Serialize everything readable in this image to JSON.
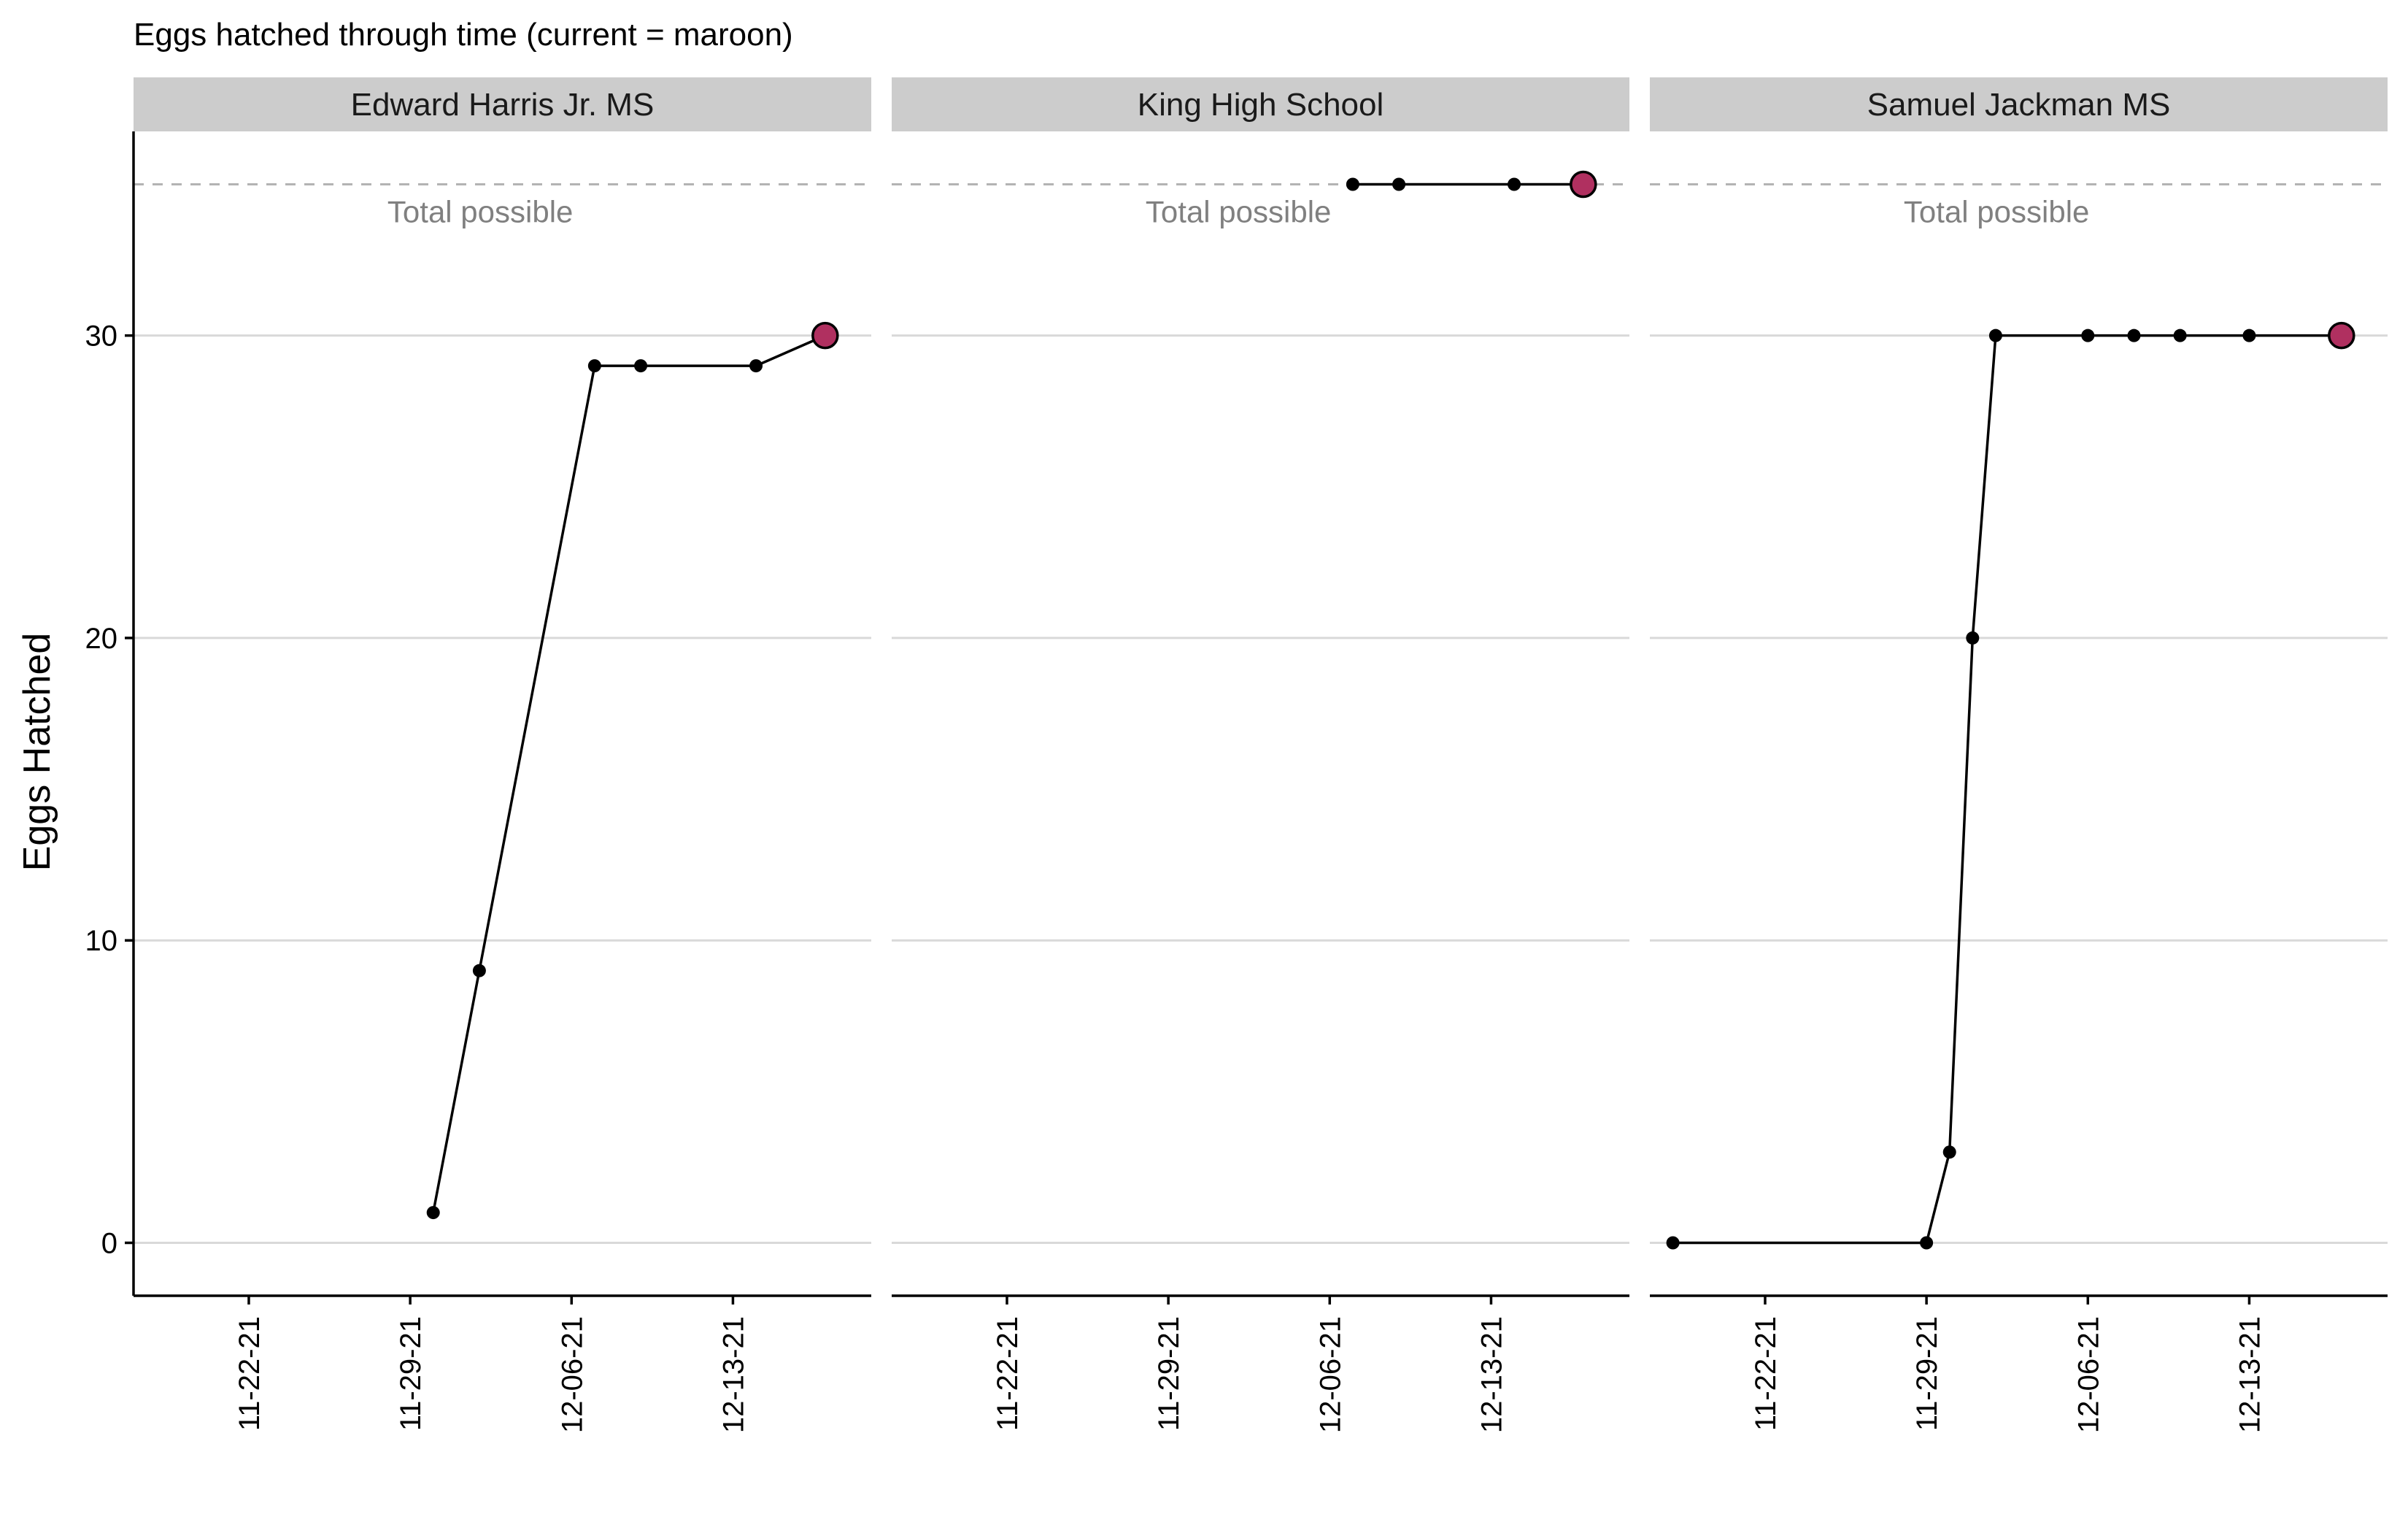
{
  "chart_data": {
    "type": "line",
    "title": "Eggs hatched through time (current = maroon)",
    "ylabel": "Eggs Hatched",
    "xlabel": "",
    "ylim": [
      -1.75,
      36.75
    ],
    "yticks": [
      0,
      10,
      20,
      30
    ],
    "xlim": [
      "2021-11-17",
      "2021-12-19"
    ],
    "xticks": [
      {
        "date": "2021-11-22",
        "label": "11-22-21"
      },
      {
        "date": "2021-11-29",
        "label": "11-29-21"
      },
      {
        "date": "2021-12-06",
        "label": "12-06-21"
      },
      {
        "date": "2021-12-13",
        "label": "12-13-21"
      }
    ],
    "reference_line": {
      "value": 35,
      "label": "Total possible"
    },
    "colors": {
      "current_point": "#b03060",
      "line": "#000000",
      "strip": "#cccccc"
    },
    "panels": [
      {
        "name": "Edward Harris Jr. MS",
        "points": [
          {
            "x": "2021-11-30",
            "y": 1
          },
          {
            "x": "2021-12-02",
            "y": 9
          },
          {
            "x": "2021-12-07",
            "y": 29
          },
          {
            "x": "2021-12-09",
            "y": 29
          },
          {
            "x": "2021-12-14",
            "y": 29
          },
          {
            "x": "2021-12-17",
            "y": 30,
            "current": true
          }
        ]
      },
      {
        "name": "King High School",
        "points": [
          {
            "x": "2021-12-07",
            "y": 35
          },
          {
            "x": "2021-12-09",
            "y": 35
          },
          {
            "x": "2021-12-14",
            "y": 35
          },
          {
            "x": "2021-12-17",
            "y": 35,
            "current": true
          }
        ]
      },
      {
        "name": "Samuel Jackman MS",
        "points": [
          {
            "x": "2021-11-18",
            "y": 0
          },
          {
            "x": "2021-11-29",
            "y": 0
          },
          {
            "x": "2021-11-30",
            "y": 3
          },
          {
            "x": "2021-12-01",
            "y": 20
          },
          {
            "x": "2021-12-02",
            "y": 30
          },
          {
            "x": "2021-12-06",
            "y": 30
          },
          {
            "x": "2021-12-08",
            "y": 30
          },
          {
            "x": "2021-12-10",
            "y": 30
          },
          {
            "x": "2021-12-13",
            "y": 30
          },
          {
            "x": "2021-12-17",
            "y": 30,
            "current": true
          }
        ]
      }
    ]
  }
}
